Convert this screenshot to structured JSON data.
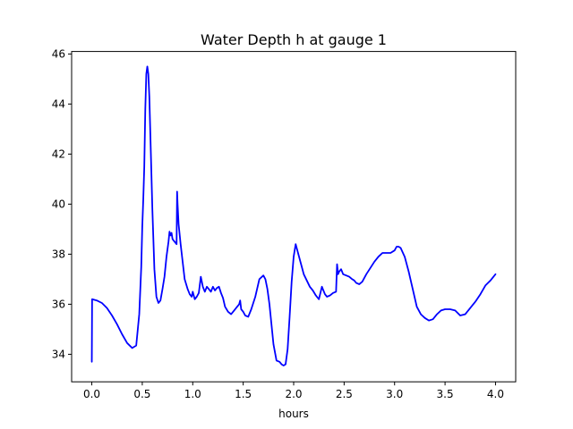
{
  "chart_data": {
    "type": "line",
    "title": "Water Depth h at gauge 1",
    "xlabel": "hours",
    "ylabel": "",
    "xlim": [
      -0.2,
      4.2
    ],
    "ylim": [
      32.9,
      46.1
    ],
    "xticks": [
      0.0,
      0.5,
      1.0,
      1.5,
      2.0,
      2.5,
      3.0,
      3.5,
      4.0
    ],
    "xtick_labels": [
      "0.0",
      "0.5",
      "1.0",
      "1.5",
      "2.0",
      "2.5",
      "3.0",
      "3.5",
      "4.0"
    ],
    "yticks": [
      34,
      36,
      38,
      40,
      42,
      44,
      46
    ],
    "ytick_labels": [
      "34",
      "36",
      "38",
      "40",
      "42",
      "44",
      "46"
    ],
    "grid": false,
    "series": [
      {
        "color": "#0000ff",
        "x": [
          0.0,
          0.003,
          0.05,
          0.1,
          0.15,
          0.2,
          0.25,
          0.3,
          0.35,
          0.4,
          0.44,
          0.47,
          0.49,
          0.5,
          0.51,
          0.52,
          0.53,
          0.54,
          0.55,
          0.56,
          0.57,
          0.58,
          0.6,
          0.62,
          0.64,
          0.66,
          0.68,
          0.7,
          0.72,
          0.74,
          0.76,
          0.77,
          0.78,
          0.79,
          0.8,
          0.82,
          0.84,
          0.845,
          0.85,
          0.86,
          0.88,
          0.9,
          0.92,
          0.95,
          0.97,
          0.99,
          1.0,
          1.02,
          1.04,
          1.06,
          1.08,
          1.1,
          1.12,
          1.14,
          1.16,
          1.18,
          1.2,
          1.22,
          1.24,
          1.26,
          1.28,
          1.3,
          1.32,
          1.35,
          1.38,
          1.41,
          1.44,
          1.46,
          1.47,
          1.48,
          1.5,
          1.52,
          1.55,
          1.58,
          1.62,
          1.66,
          1.7,
          1.72,
          1.74,
          1.76,
          1.78,
          1.8,
          1.83,
          1.86,
          1.88,
          1.9,
          1.92,
          1.94,
          1.96,
          1.98,
          2.0,
          2.02,
          2.04,
          2.06,
          2.08,
          2.1,
          2.13,
          2.16,
          2.19,
          2.22,
          2.25,
          2.28,
          2.3,
          2.31,
          2.33,
          2.36,
          2.39,
          2.42,
          2.43,
          2.44,
          2.45,
          2.47,
          2.49,
          2.52,
          2.55,
          2.58,
          2.6,
          2.62,
          2.65,
          2.68,
          2.72,
          2.76,
          2.8,
          2.84,
          2.88,
          2.92,
          2.96,
          3.0,
          3.02,
          3.04,
          3.06,
          3.1,
          3.14,
          3.18,
          3.22,
          3.26,
          3.3,
          3.34,
          3.38,
          3.42,
          3.46,
          3.5,
          3.55,
          3.6,
          3.65,
          3.7,
          3.75,
          3.8,
          3.85,
          3.9,
          3.95,
          4.0
        ],
        "y": [
          33.7,
          36.2,
          36.15,
          36.05,
          35.85,
          35.55,
          35.2,
          34.8,
          34.45,
          34.25,
          34.35,
          35.6,
          37.5,
          39.1,
          40.2,
          41.5,
          43.8,
          45.2,
          45.5,
          45.2,
          44.3,
          42.8,
          39.8,
          37.4,
          36.3,
          36.05,
          36.15,
          36.6,
          37.1,
          37.9,
          38.5,
          38.9,
          38.75,
          38.85,
          38.6,
          38.5,
          38.4,
          40.5,
          40.0,
          39.2,
          38.4,
          37.7,
          37.0,
          36.6,
          36.4,
          36.3,
          36.5,
          36.2,
          36.3,
          36.45,
          37.1,
          36.7,
          36.5,
          36.7,
          36.6,
          36.5,
          36.7,
          36.55,
          36.65,
          36.7,
          36.45,
          36.25,
          35.9,
          35.7,
          35.6,
          35.75,
          35.9,
          36.0,
          36.15,
          35.8,
          35.7,
          35.55,
          35.5,
          35.8,
          36.3,
          37.0,
          37.15,
          37.0,
          36.6,
          36.0,
          35.2,
          34.4,
          33.75,
          33.7,
          33.6,
          33.55,
          33.6,
          34.2,
          35.5,
          36.9,
          37.9,
          38.4,
          38.1,
          37.8,
          37.5,
          37.2,
          36.95,
          36.7,
          36.55,
          36.35,
          36.2,
          36.7,
          36.5,
          36.4,
          36.3,
          36.35,
          36.45,
          36.5,
          37.6,
          37.2,
          37.3,
          37.4,
          37.2,
          37.15,
          37.1,
          37.0,
          36.95,
          36.85,
          36.8,
          36.9,
          37.2,
          37.45,
          37.7,
          37.9,
          38.05,
          38.05,
          38.05,
          38.15,
          38.3,
          38.3,
          38.25,
          37.9,
          37.3,
          36.6,
          35.9,
          35.6,
          35.45,
          35.35,
          35.4,
          35.6,
          35.75,
          35.8,
          35.8,
          35.75,
          35.55,
          35.6,
          35.85,
          36.1,
          36.4,
          36.75,
          36.95,
          37.2
        ]
      }
    ]
  }
}
